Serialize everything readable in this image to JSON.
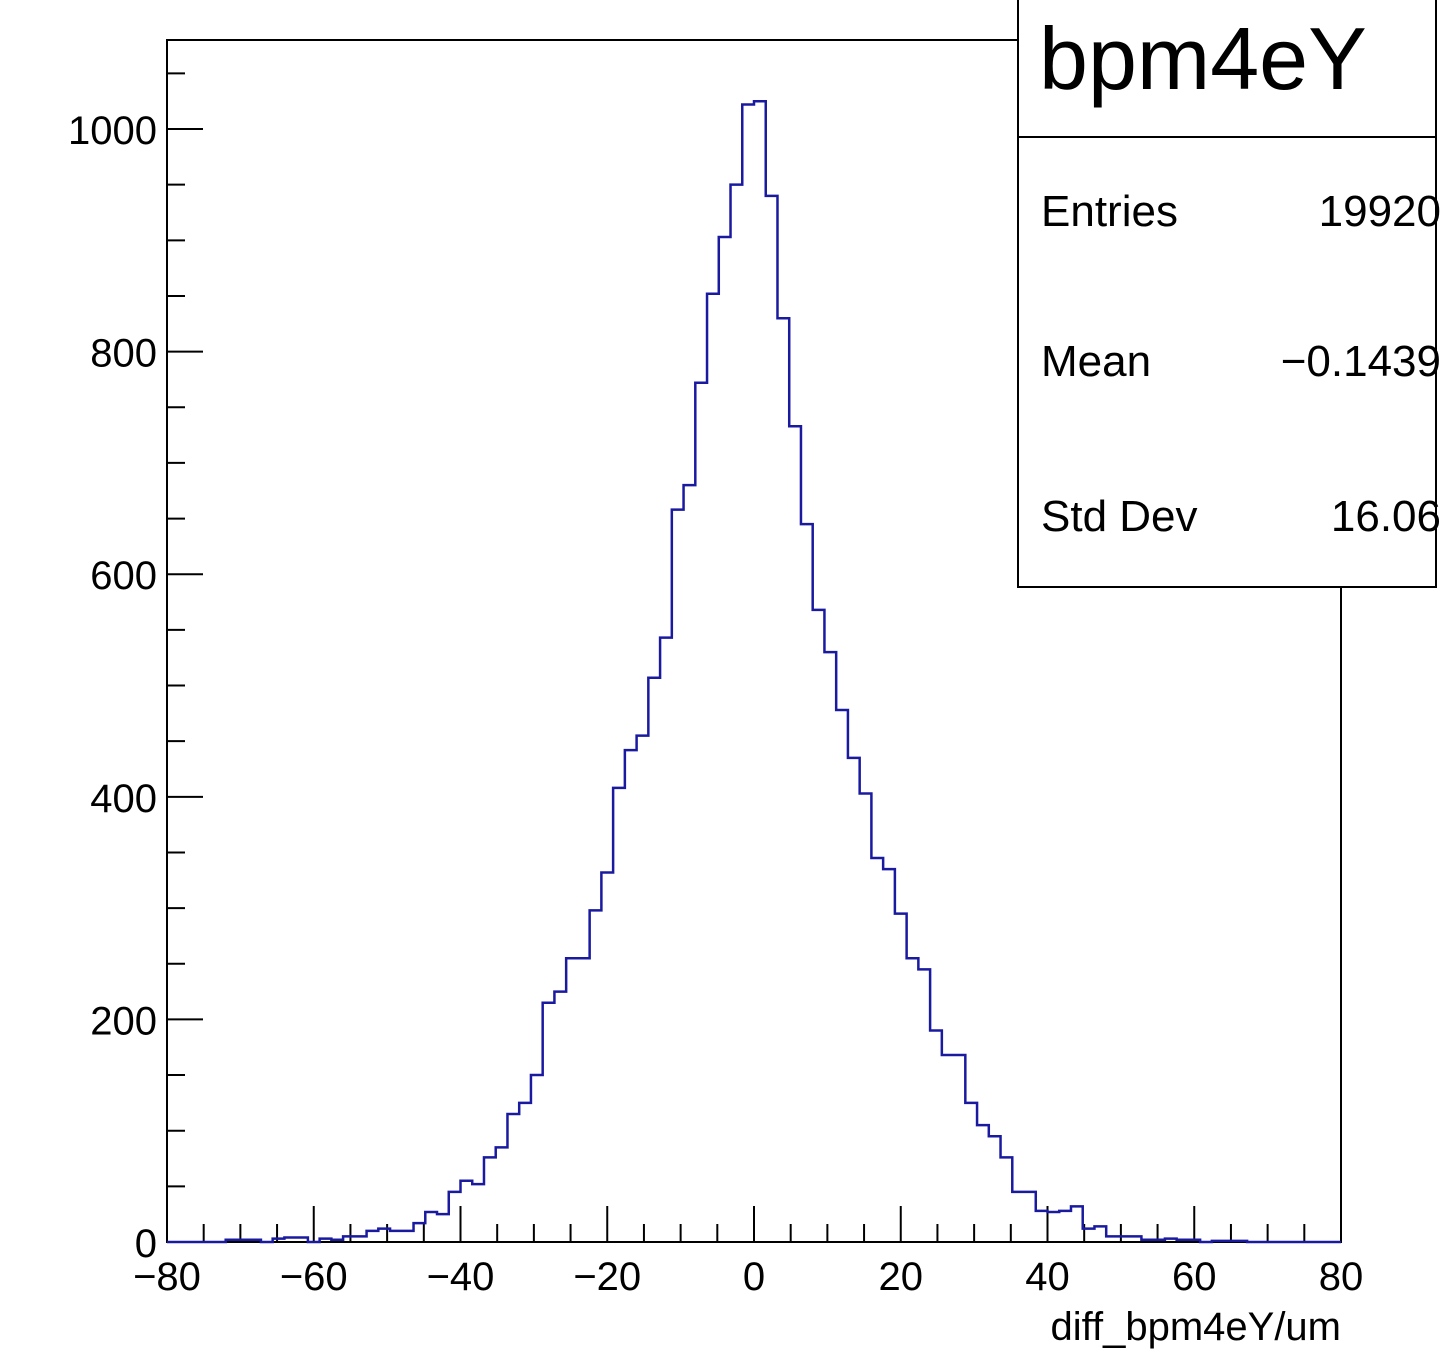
{
  "chart_data": {
    "type": "histogram",
    "title": "bpm4eY",
    "xlabel": "diff_bpm4eY/um",
    "ylabel": "",
    "xlim": [
      -80,
      80
    ],
    "ylim": [
      0,
      1080
    ],
    "x_ticks": [
      -80,
      -60,
      -40,
      -20,
      0,
      20,
      40,
      60,
      80
    ],
    "x_tick_labels": [
      "-80",
      "-60",
      "-40",
      "-20",
      "0",
      "20",
      "40",
      "60",
      "80"
    ],
    "y_ticks": [
      0,
      200,
      400,
      600,
      800,
      1000
    ],
    "y_tick_labels": [
      "0",
      "200",
      "400",
      "600",
      "800",
      "1000"
    ],
    "bin_edges_start": -80,
    "bin_width": 1.6,
    "counts": [
      0,
      0,
      0,
      0,
      0,
      2,
      2,
      2,
      0,
      3,
      4,
      4,
      0,
      3,
      2,
      5,
      5,
      10,
      12,
      10,
      10,
      17,
      27,
      25,
      45,
      55,
      52,
      76,
      85,
      115,
      125,
      150,
      215,
      225,
      255,
      255,
      298,
      332,
      408,
      442,
      455,
      507,
      543,
      658,
      680,
      772,
      852,
      903,
      950,
      1022,
      1025,
      940,
      830,
      733,
      645,
      568,
      530,
      478,
      435,
      403,
      345,
      335,
      295,
      255,
      245,
      190,
      168,
      168,
      125,
      105,
      95,
      76,
      45,
      45,
      28,
      27,
      28,
      32,
      12,
      14,
      5,
      5,
      5,
      2,
      2,
      3,
      2,
      2,
      0,
      1,
      1,
      1,
      0,
      0,
      0,
      0,
      0,
      0,
      0,
      0
    ],
    "stats": {
      "title": "bpm4eY",
      "rows": [
        {
          "label": "Entries",
          "value": "19920"
        },
        {
          "label": "Mean",
          "value": "−0.1439"
        },
        {
          "label": "Std Dev",
          "value": "16.06"
        }
      ]
    },
    "line_color": "#1a1aa0",
    "grid": false
  }
}
